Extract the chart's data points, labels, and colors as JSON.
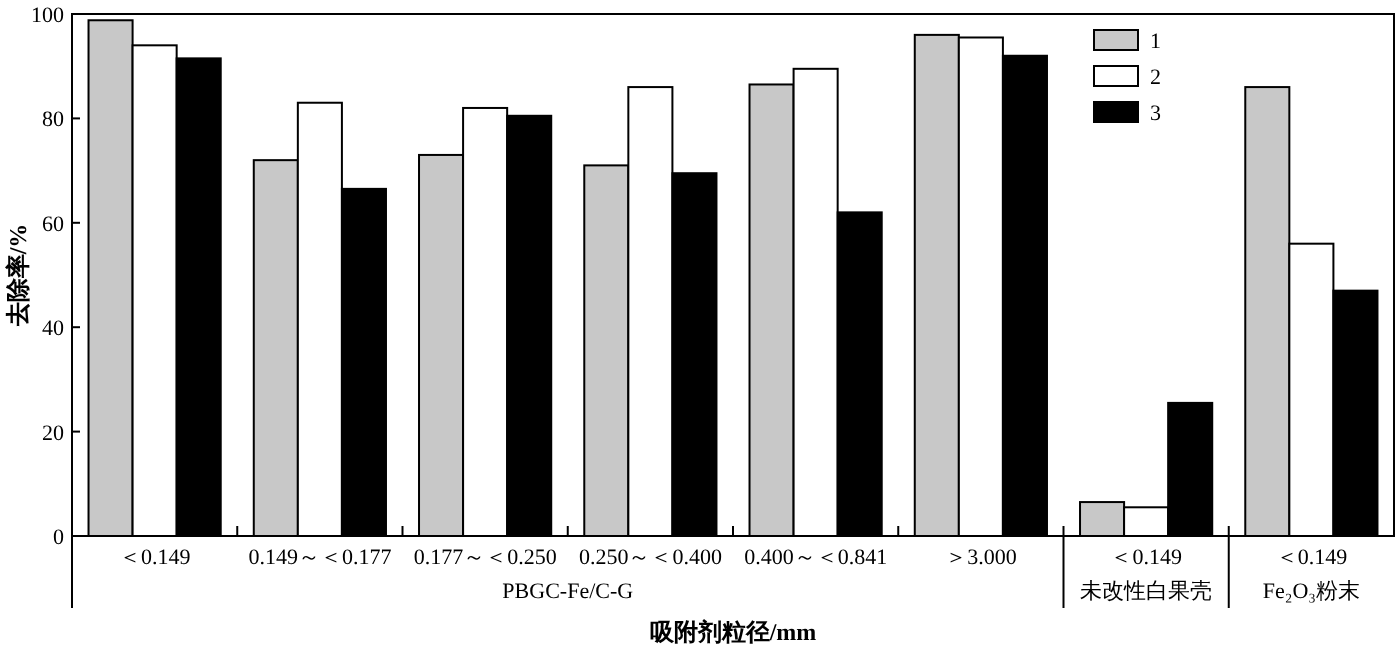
{
  "chart_data": {
    "type": "bar",
    "xlabel": "吸附剂粒径/mm",
    "ylabel": "去除率/%",
    "categories": [
      "＜0.149",
      "0.149～＜0.177",
      "0.177～＜0.250",
      "0.250～＜0.400",
      "0.400～＜0.841",
      "＞3.000",
      "＜0.149",
      "＜0.149"
    ],
    "series": [
      {
        "name": "1",
        "color": "#c8c8c8",
        "values": [
          98.8,
          72,
          73,
          71,
          86.5,
          96,
          6.5,
          86
        ]
      },
      {
        "name": "2",
        "color": "#ffffff",
        "values": [
          94,
          83,
          82,
          86,
          89.5,
          95.5,
          5.5,
          56
        ]
      },
      {
        "name": "3",
        "color": "#000000",
        "values": [
          91.5,
          66.5,
          80.5,
          69.5,
          62,
          92,
          25.5,
          47
        ]
      }
    ],
    "annotations": [
      "PBGC-Fe/C-G",
      "未改性白果壳",
      "Fe₂O₃粉末"
    ],
    "ylim": [
      0,
      100
    ],
    "yticks": [
      0,
      20,
      40,
      60,
      80,
      100
    ],
    "legend": "top right",
    "grid": false
  }
}
